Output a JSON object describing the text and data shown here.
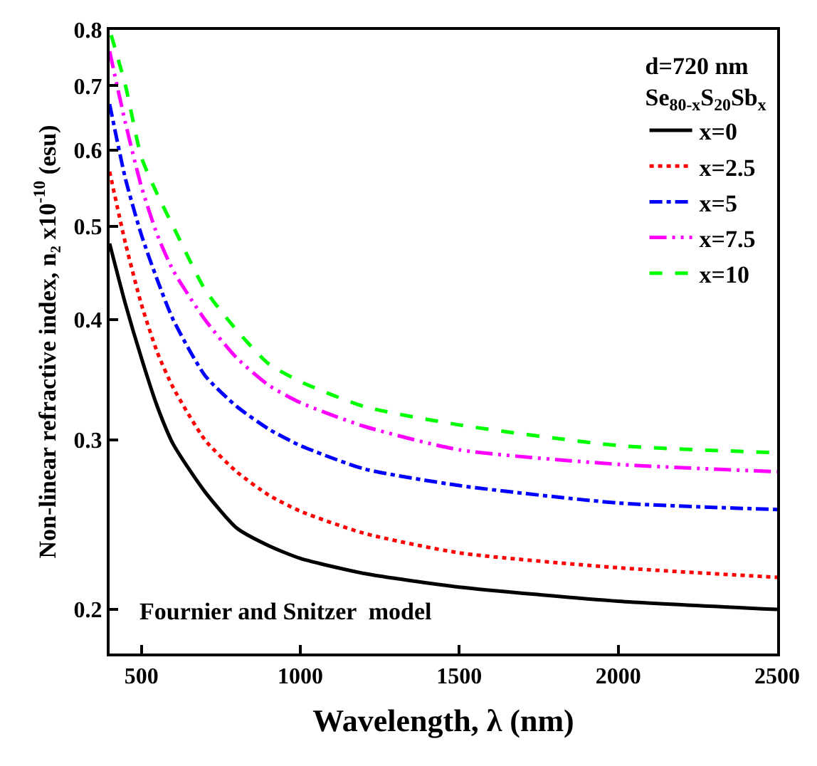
{
  "chart_data": {
    "type": "line",
    "xlabel": "Wavelength, λ (nm)",
    "ylabel": "Non-linear refractive index, n₂ x10$^{-10}$ (esu)",
    "legend_title": "d=720 nm\nSe$_{80-x}$S$_{20}$Sb$_{x}$",
    "annotations": [
      "Fournier and Snitzer  model"
    ],
    "x": [
      400,
      450,
      500,
      550,
      600,
      700,
      800,
      900,
      1000,
      1200,
      1500,
      2000,
      2500
    ],
    "series": [
      {
        "name": "x=0",
        "color": "#000000",
        "line_style": "solid",
        "values": [
          0.48,
          0.415,
          0.365,
          0.325,
          0.297,
          0.265,
          0.243,
          0.233,
          0.226,
          0.218,
          0.211,
          0.204,
          0.2
        ]
      },
      {
        "name": "x=2.5",
        "color": "#ff0000",
        "line_style": "dotted",
        "values": [
          0.57,
          0.48,
          0.415,
          0.37,
          0.34,
          0.3,
          0.278,
          0.263,
          0.253,
          0.24,
          0.229,
          0.221,
          0.216
        ]
      },
      {
        "name": "x=5",
        "color": "#0000ff",
        "line_style": "dashdot",
        "values": [
          0.67,
          0.56,
          0.49,
          0.44,
          0.4,
          0.35,
          0.325,
          0.308,
          0.296,
          0.28,
          0.269,
          0.258,
          0.254
        ]
      },
      {
        "name": "x=7.5",
        "color": "#ff00ff",
        "line_style": "dashdotdot",
        "values": [
          0.76,
          0.64,
          0.55,
          0.49,
          0.45,
          0.4,
          0.365,
          0.342,
          0.328,
          0.31,
          0.293,
          0.283,
          0.278
        ]
      },
      {
        "name": "x=10",
        "color": "#00ff00",
        "line_style": "dashed",
        "x": [
          405,
          450,
          500,
          550,
          600,
          700,
          800,
          900,
          1000,
          1200,
          1500,
          2000,
          2500
        ],
        "values": [
          0.79,
          0.7,
          0.59,
          0.54,
          0.5,
          0.43,
          0.39,
          0.36,
          0.345,
          0.325,
          0.311,
          0.296,
          0.291
        ]
      }
    ],
    "log": "y",
    "xlim": [
      400,
      2500
    ],
    "xticks": [
      500,
      1000,
      1500,
      2000,
      2500
    ],
    "ylim": [
      0.18,
      0.8
    ],
    "yticks": [
      0.2,
      0.3,
      0.4,
      0.5,
      0.6,
      0.7,
      0.8
    ],
    "legend": "top right",
    "marker": "none"
  }
}
